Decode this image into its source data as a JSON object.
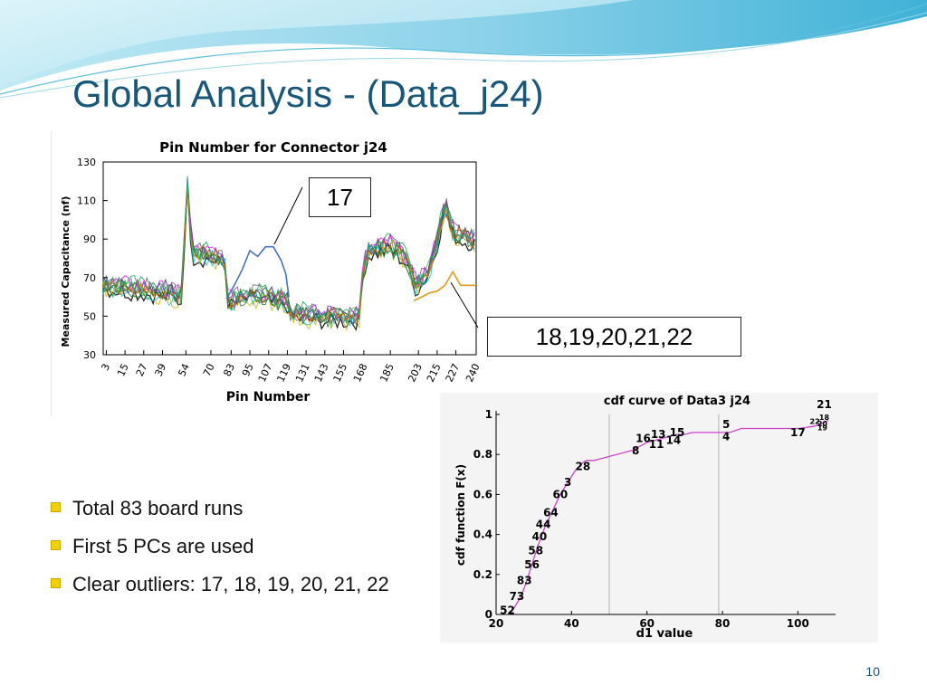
{
  "slide": {
    "title": "Global Analysis  - (Data_j24)",
    "page_number": "10",
    "bullets": [
      "Total 83 board runs",
      "First 5 PCs are used",
      "Clear outliers:  17, 18, 19, 20, 21, 22"
    ],
    "callouts": {
      "pin17": "17",
      "pins18_22": "18,19,20,21,22"
    },
    "colors": {
      "title": "#17577a",
      "bullet": "#f2d100",
      "wave": "#4fb8d8"
    }
  },
  "chart_data": [
    {
      "type": "line",
      "title": "Pin Number for Connector j24",
      "xlabel": "Pin Number",
      "ylabel": "Measured Capacitance (nf)",
      "ylim": [
        30,
        130
      ],
      "yticks": [
        30,
        50,
        70,
        90,
        110,
        130
      ],
      "xlim": [
        1,
        240
      ],
      "xticks": [
        3,
        15,
        27,
        39,
        54,
        70,
        83,
        95,
        107,
        119,
        131,
        143,
        155,
        168,
        185,
        203,
        215,
        227,
        240
      ],
      "grid": false,
      "profile": {
        "x": [
          1,
          20,
          40,
          52,
          53,
          55,
          58,
          70,
          80,
          81,
          83,
          95,
          107,
          120,
          121,
          130,
          145,
          165,
          166,
          170,
          180,
          185,
          195,
          200,
          202,
          210,
          215,
          220,
          225,
          230,
          240
        ],
        "y": [
          67,
          65,
          63,
          60,
          90,
          118,
          83,
          82,
          78,
          60,
          58,
          62,
          60,
          58,
          52,
          51,
          50,
          50,
          66,
          84,
          86,
          87,
          80,
          68,
          66,
          75,
          90,
          108,
          95,
          92,
          90
        ]
      },
      "outliers": [
        {
          "label": "17",
          "x": [
            80,
            85,
            90,
            95,
            100,
            105,
            110,
            115,
            118,
            120
          ],
          "y": [
            59,
            66,
            74,
            84,
            81,
            86,
            86,
            79,
            72,
            60
          ]
        },
        {
          "label": "18,19,20,21,22",
          "x": [
            200,
            205,
            210,
            215,
            220,
            225,
            230,
            235,
            240
          ],
          "y": [
            58,
            60,
            62,
            63,
            66,
            73,
            66,
            66,
            66
          ]
        }
      ]
    },
    {
      "type": "line",
      "title": "cdf curve of Data3 j24",
      "xlabel": "d1 value",
      "ylabel": "cdf function F(x)",
      "xlim": [
        20,
        110
      ],
      "ylim": [
        0,
        1
      ],
      "xticks": [
        20,
        40,
        60,
        80,
        100
      ],
      "yticks": [
        0,
        0.2,
        0.4,
        0.6,
        0.8,
        1
      ],
      "vlines": [
        50,
        79
      ],
      "series": [
        {
          "x": [
            24,
            25,
            26,
            27,
            28,
            29,
            30,
            31,
            32,
            33,
            34,
            35,
            36,
            37,
            38,
            39,
            40,
            41,
            42,
            43,
            44,
            46,
            48,
            50,
            52,
            54,
            56,
            58,
            60,
            62,
            64,
            66,
            68,
            70,
            72,
            75,
            78,
            80,
            82,
            85,
            88,
            92,
            96,
            100,
            104,
            106,
            108
          ],
          "y": [
            0.01,
            0.04,
            0.07,
            0.11,
            0.16,
            0.22,
            0.28,
            0.34,
            0.39,
            0.44,
            0.48,
            0.52,
            0.56,
            0.6,
            0.63,
            0.66,
            0.69,
            0.72,
            0.74,
            0.76,
            0.77,
            0.77,
            0.78,
            0.79,
            0.8,
            0.81,
            0.82,
            0.84,
            0.86,
            0.87,
            0.88,
            0.89,
            0.9,
            0.9,
            0.91,
            0.91,
            0.91,
            0.91,
            0.91,
            0.93,
            0.93,
            0.93,
            0.93,
            0.93,
            0.94,
            0.95,
            0.97
          ]
        }
      ],
      "point_labels": [
        {
          "text": "52",
          "x": 23,
          "y": 0.02
        },
        {
          "text": "73",
          "x": 25.5,
          "y": 0.09
        },
        {
          "text": "83",
          "x": 27.5,
          "y": 0.17
        },
        {
          "text": "56",
          "x": 29.5,
          "y": 0.25
        },
        {
          "text": "58",
          "x": 30.5,
          "y": 0.32
        },
        {
          "text": "40",
          "x": 31.5,
          "y": 0.39
        },
        {
          "text": "44",
          "x": 32.5,
          "y": 0.45
        },
        {
          "text": "64",
          "x": 34.5,
          "y": 0.51
        },
        {
          "text": "60",
          "x": 37,
          "y": 0.6
        },
        {
          "text": "3",
          "x": 39,
          "y": 0.66
        },
        {
          "text": "28",
          "x": 43,
          "y": 0.74
        },
        {
          "text": "8",
          "x": 57,
          "y": 0.82
        },
        {
          "text": "16",
          "x": 59,
          "y": 0.88
        },
        {
          "text": "11",
          "x": 62.5,
          "y": 0.85
        },
        {
          "text": "13",
          "x": 63,
          "y": 0.9
        },
        {
          "text": "14",
          "x": 67,
          "y": 0.87
        },
        {
          "text": "15",
          "x": 68,
          "y": 0.91
        },
        {
          "text": "5",
          "x": 81,
          "y": 0.95
        },
        {
          "text": "4",
          "x": 81,
          "y": 0.89
        },
        {
          "text": "17",
          "x": 100,
          "y": 0.91
        },
        {
          "text": "22",
          "x": 104.5,
          "y": 0.97
        },
        {
          "text": "20",
          "x": 106.5,
          "y": 0.96
        },
        {
          "text": "19",
          "x": 106.5,
          "y": 0.94
        },
        {
          "text": "18",
          "x": 107,
          "y": 0.99
        },
        {
          "text": "21",
          "x": 107,
          "y": 1.05
        }
      ]
    }
  ]
}
